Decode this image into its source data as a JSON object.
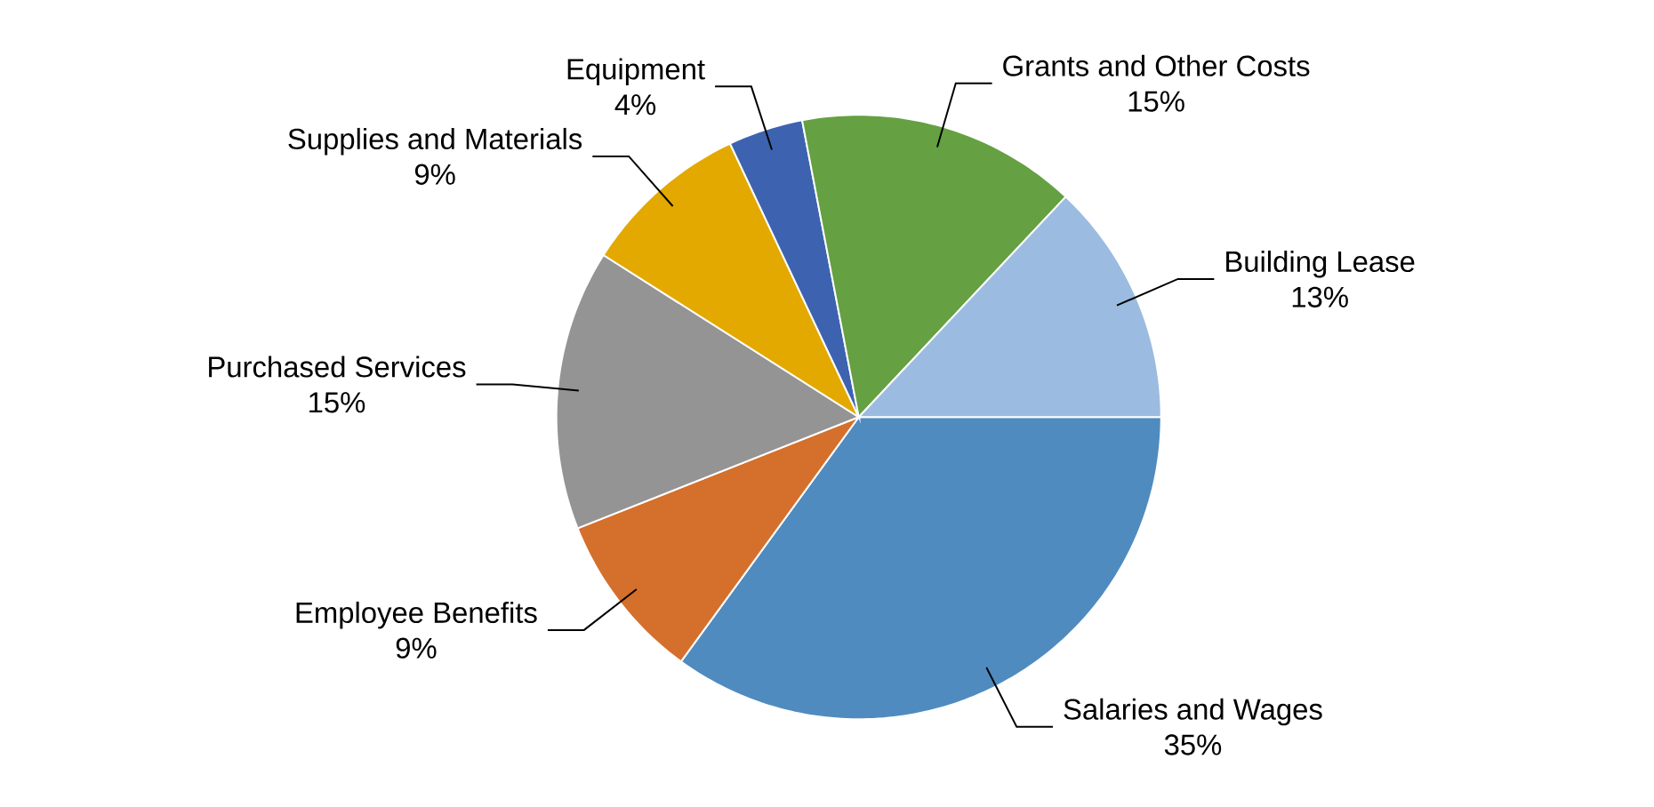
{
  "chart_data": {
    "type": "pie",
    "categories": [
      "Salaries and Wages",
      "Employee Benefits",
      "Purchased Services",
      "Supplies and Materials",
      "Equipment",
      "Grants and Other Costs",
      "Building Lease"
    ],
    "values": [
      35,
      9,
      15,
      9,
      4,
      15,
      13
    ],
    "value_labels": [
      "35%",
      "9%",
      "15%",
      "9%",
      "4%",
      "15%",
      "13%"
    ],
    "colors": [
      "#4f8bbf",
      "#d4702c",
      "#949494",
      "#e3a900",
      "#3d63b0",
      "#65a042",
      "#9bbbe0"
    ]
  }
}
